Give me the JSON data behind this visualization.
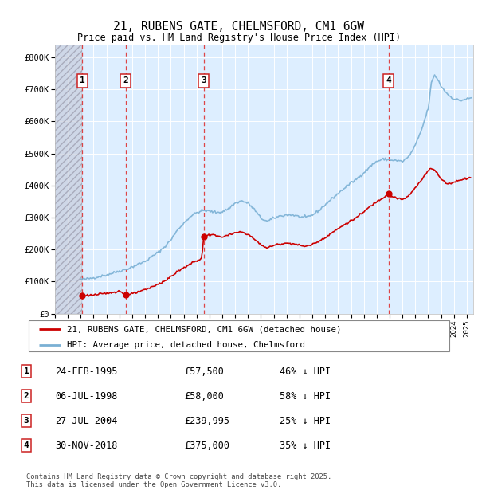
{
  "title": "21, RUBENS GATE, CHELMSFORD, CM1 6GW",
  "subtitle": "Price paid vs. HM Land Registry's House Price Index (HPI)",
  "ylabel_ticks": [
    "£0",
    "£100K",
    "£200K",
    "£300K",
    "£400K",
    "£500K",
    "£600K",
    "£700K",
    "£800K"
  ],
  "ytick_values": [
    0,
    100000,
    200000,
    300000,
    400000,
    500000,
    600000,
    700000,
    800000
  ],
  "ylim": [
    0,
    840000
  ],
  "xlim_start": 1993.0,
  "xlim_end": 2025.5,
  "sale_dates": [
    1995.12,
    1998.5,
    2004.56,
    2018.92
  ],
  "sale_prices": [
    57500,
    58000,
    239995,
    375000
  ],
  "sale_labels": [
    "1",
    "2",
    "3",
    "4"
  ],
  "hatch_end": 1995.12,
  "legend_entries": [
    "21, RUBENS GATE, CHELMSFORD, CM1 6GW (detached house)",
    "HPI: Average price, detached house, Chelmsford"
  ],
  "table_rows": [
    {
      "num": "1",
      "date": "24-FEB-1995",
      "price": "£57,500",
      "hpi": "46% ↓ HPI"
    },
    {
      "num": "2",
      "date": "06-JUL-1998",
      "price": "£58,000",
      "hpi": "58% ↓ HPI"
    },
    {
      "num": "3",
      "date": "27-JUL-2004",
      "price": "£239,995",
      "hpi": "25% ↓ HPI"
    },
    {
      "num": "4",
      "date": "30-NOV-2018",
      "price": "£375,000",
      "hpi": "35% ↓ HPI"
    }
  ],
  "footnote": "Contains HM Land Registry data © Crown copyright and database right 2025.\nThis data is licensed under the Open Government Licence v3.0.",
  "red_color": "#cc0000",
  "blue_color": "#7ab0d4",
  "bg_color": "#ddeeff",
  "grid_color": "#ffffff"
}
